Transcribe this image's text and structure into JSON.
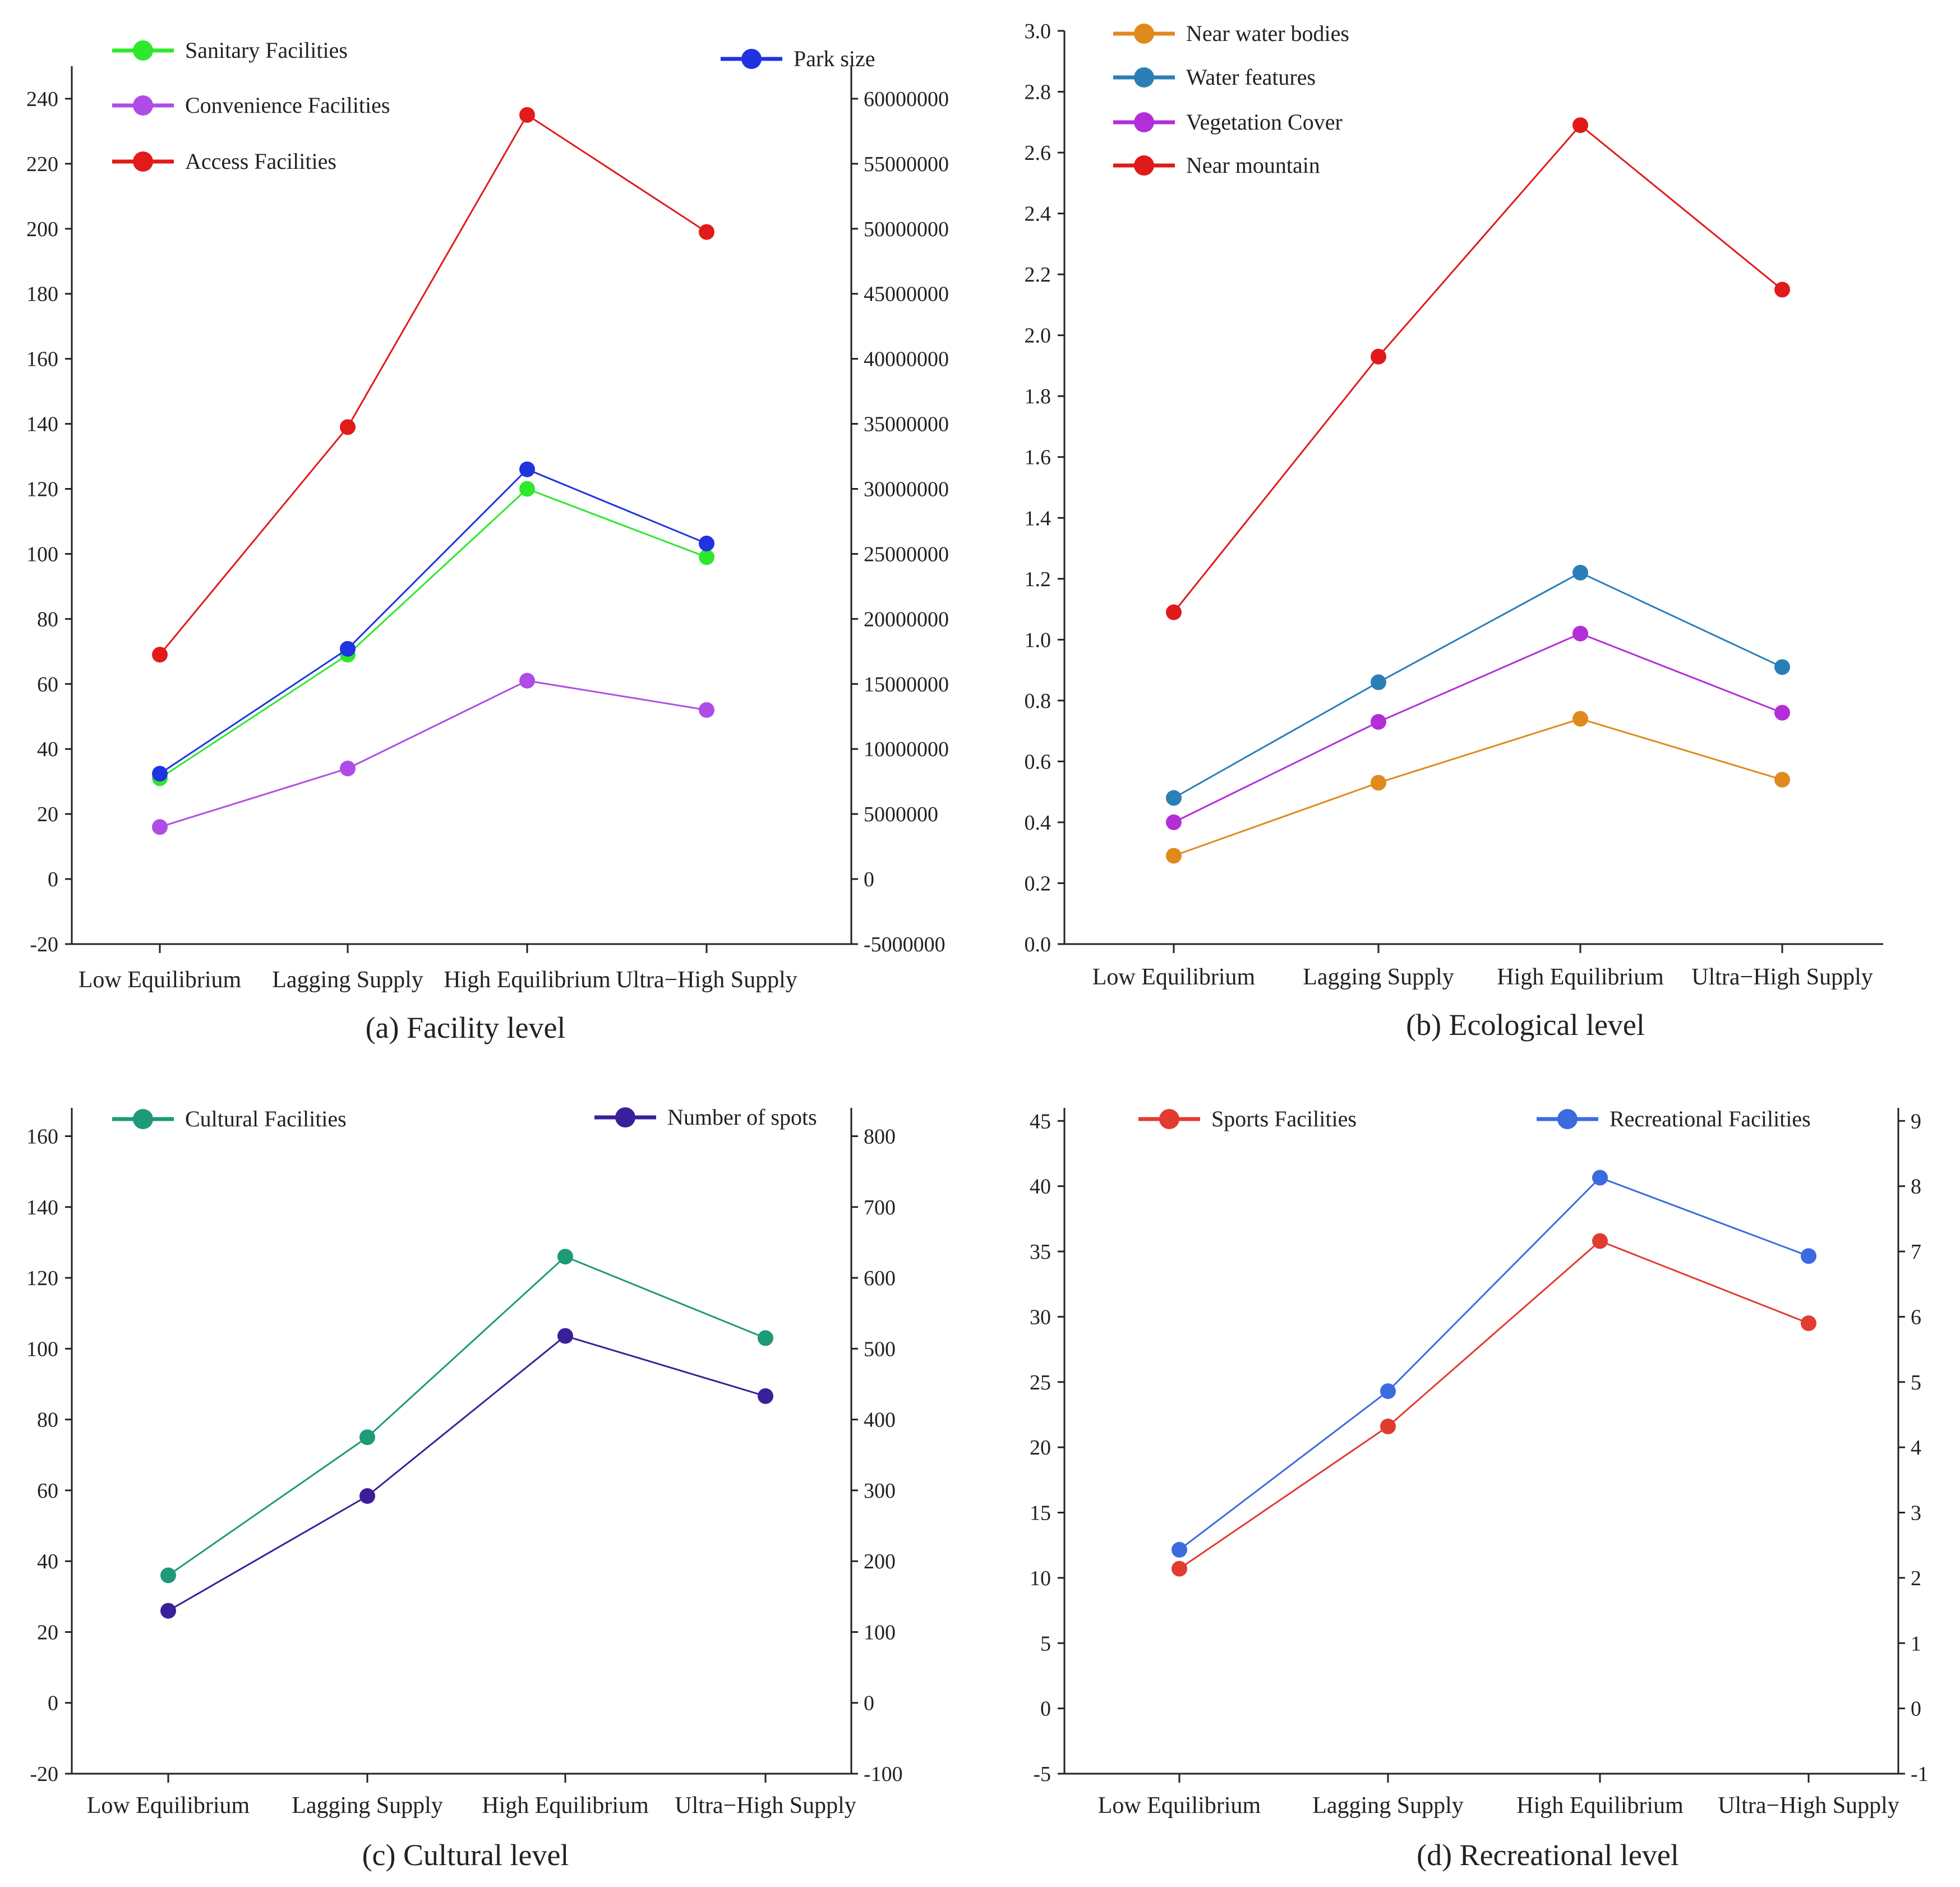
{
  "chart_data": [
    {
      "type": "line",
      "caption": "(a) Facility level",
      "categories": [
        "Low Equilibrium",
        "Lagging Supply",
        "High Equilibrium",
        "Ultra−High Supply"
      ],
      "y_left": {
        "ylim": [
          -20,
          250
        ],
        "ticks": [
          -20,
          0,
          20,
          40,
          60,
          80,
          100,
          120,
          140,
          160,
          180,
          200,
          220,
          240
        ]
      },
      "y_right": {
        "ylim": [
          -5000000,
          62500000
        ],
        "ticks": [
          -5000000,
          0,
          5000000,
          10000000,
          15000000,
          20000000,
          25000000,
          30000000,
          35000000,
          40000000,
          45000000,
          50000000,
          55000000,
          60000000
        ]
      },
      "series": [
        {
          "name": "Sanitary Facilities",
          "axis": "left",
          "color": "#2ee82e",
          "values": [
            31,
            69,
            120,
            99
          ]
        },
        {
          "name": "Convenience Facilities",
          "axis": "left",
          "color": "#b04ce6",
          "values": [
            16,
            34,
            61,
            52
          ]
        },
        {
          "name": "Access Facilities",
          "axis": "left",
          "color": "#e21a1a",
          "values": [
            69,
            139,
            235,
            199
          ]
        },
        {
          "name": "Park size",
          "axis": "right",
          "color": "#1f33e0",
          "values": [
            8100000,
            17700000,
            31500000,
            25800000
          ]
        }
      ]
    },
    {
      "type": "line",
      "caption": "(b) Ecological level",
      "categories": [
        "Low Equilibrium",
        "Lagging Supply",
        "High Equilibrium",
        "Ultra−High Supply"
      ],
      "y_left": {
        "ylim": [
          0,
          3.0
        ],
        "ticks": [
          "0.0",
          "0.2",
          "0.4",
          "0.6",
          "0.8",
          "1.0",
          "1.2",
          "1.4",
          "1.6",
          "1.8",
          "2.0",
          "2.2",
          "2.4",
          "2.6",
          "2.8",
          "3.0"
        ]
      },
      "series": [
        {
          "name": "Near water bodies",
          "axis": "left",
          "color": "#e08a1e",
          "values": [
            0.29,
            0.53,
            0.74,
            0.54
          ]
        },
        {
          "name": "Water features",
          "axis": "left",
          "color": "#2a7fb8",
          "values": [
            0.48,
            0.86,
            1.22,
            0.91
          ]
        },
        {
          "name": "Vegetation Cover",
          "axis": "left",
          "color": "#b32ed8",
          "values": [
            0.4,
            0.73,
            1.02,
            0.76
          ]
        },
        {
          "name": "Near mountain",
          "axis": "left",
          "color": "#e01a1a",
          "values": [
            1.09,
            1.93,
            2.69,
            2.15
          ]
        }
      ]
    },
    {
      "type": "line",
      "caption": "(c) Cultural level",
      "categories": [
        "Low Equilibrium",
        "Lagging Supply",
        "High Equilibrium",
        "Ultra−High Supply"
      ],
      "y_left": {
        "ylim": [
          -20,
          168
        ],
        "ticks": [
          -20,
          0,
          20,
          40,
          60,
          80,
          100,
          120,
          140,
          160
        ]
      },
      "y_right": {
        "ylim": [
          -100,
          840
        ],
        "ticks": [
          -100,
          0,
          100,
          200,
          300,
          400,
          500,
          600,
          700,
          800
        ]
      },
      "series": [
        {
          "name": "Cultural Facilities",
          "axis": "left",
          "color": "#1e9a78",
          "values": [
            36,
            75,
            126,
            103
          ]
        },
        {
          "name": "Number of spots",
          "axis": "right",
          "color": "#3a1f9a",
          "values": [
            130,
            292,
            518,
            433
          ]
        }
      ]
    },
    {
      "type": "line",
      "caption": "(d) Recreational level",
      "categories": [
        "Low Equilibrium",
        "Lagging Supply",
        "High Equilibrium",
        "Ultra−High Supply"
      ],
      "y_left": {
        "ylim": [
          -5,
          46
        ],
        "ticks": [
          -5,
          0,
          5,
          10,
          15,
          20,
          25,
          30,
          35,
          40,
          45
        ]
      },
      "y_right": {
        "ylim": [
          -1,
          9.2
        ],
        "ticks": [
          -1,
          0,
          1,
          2,
          3,
          4,
          5,
          6,
          7,
          8,
          9
        ]
      },
      "series": [
        {
          "name": "Sports Facilities",
          "axis": "left",
          "color": "#e23b30",
          "values": [
            10.7,
            21.6,
            35.8,
            29.5
          ]
        },
        {
          "name": "Recreational Facilities",
          "axis": "right",
          "color": "#3a6ce0",
          "values": [
            2.43,
            4.86,
            8.13,
            6.93
          ]
        }
      ]
    }
  ]
}
